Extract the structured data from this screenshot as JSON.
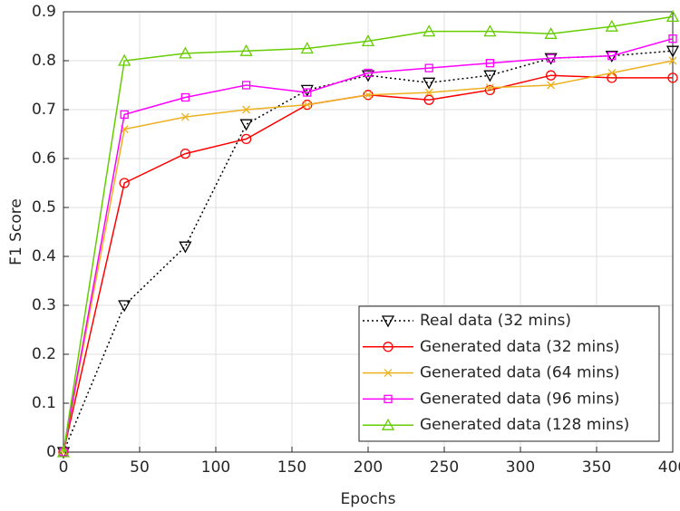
{
  "chart_data": {
    "type": "line",
    "xlabel": "Epochs",
    "ylabel": "F1 Score",
    "x": [
      0,
      40,
      80,
      120,
      160,
      200,
      240,
      280,
      320,
      360,
      400
    ],
    "xlim": [
      0,
      400
    ],
    "xticks": [
      0,
      50,
      100,
      150,
      200,
      250,
      300,
      350,
      400
    ],
    "ylim": [
      0,
      0.9
    ],
    "yticks": [
      0,
      0.1,
      0.2,
      0.3,
      0.4,
      0.5,
      0.6,
      0.7,
      0.8,
      0.9
    ],
    "grid": true,
    "legend": "lower right",
    "series": [
      {
        "name": "Real data (32 mins)",
        "color": "#000000",
        "marker": "triangle-down",
        "linestyle": "dotted",
        "values": [
          0,
          0.3,
          0.42,
          0.67,
          0.74,
          0.77,
          0.755,
          0.77,
          0.805,
          0.81,
          0.82
        ]
      },
      {
        "name": "Generated data (32 mins)",
        "color": "#ff0000",
        "marker": "circle",
        "linestyle": "solid",
        "values": [
          0,
          0.55,
          0.61,
          0.64,
          0.71,
          0.73,
          0.72,
          0.74,
          0.77,
          0.765,
          0.765
        ]
      },
      {
        "name": "Generated data (64 mins)",
        "color": "#edb120",
        "marker": "x",
        "linestyle": "solid",
        "values": [
          0,
          0.66,
          0.685,
          0.7,
          0.71,
          0.73,
          0.735,
          0.745,
          0.75,
          0.775,
          0.8
        ]
      },
      {
        "name": "Generated data (96 mins)",
        "color": "#ff00ff",
        "marker": "square",
        "linestyle": "solid",
        "values": [
          0,
          0.69,
          0.725,
          0.75,
          0.735,
          0.775,
          0.785,
          0.795,
          0.805,
          0.81,
          0.845
        ]
      },
      {
        "name": "Generated data (128 mins)",
        "color": "#66cc00",
        "marker": "triangle-up",
        "linestyle": "solid",
        "values": [
          0,
          0.8,
          0.815,
          0.82,
          0.825,
          0.84,
          0.86,
          0.86,
          0.855,
          0.87,
          0.89
        ]
      }
    ]
  }
}
